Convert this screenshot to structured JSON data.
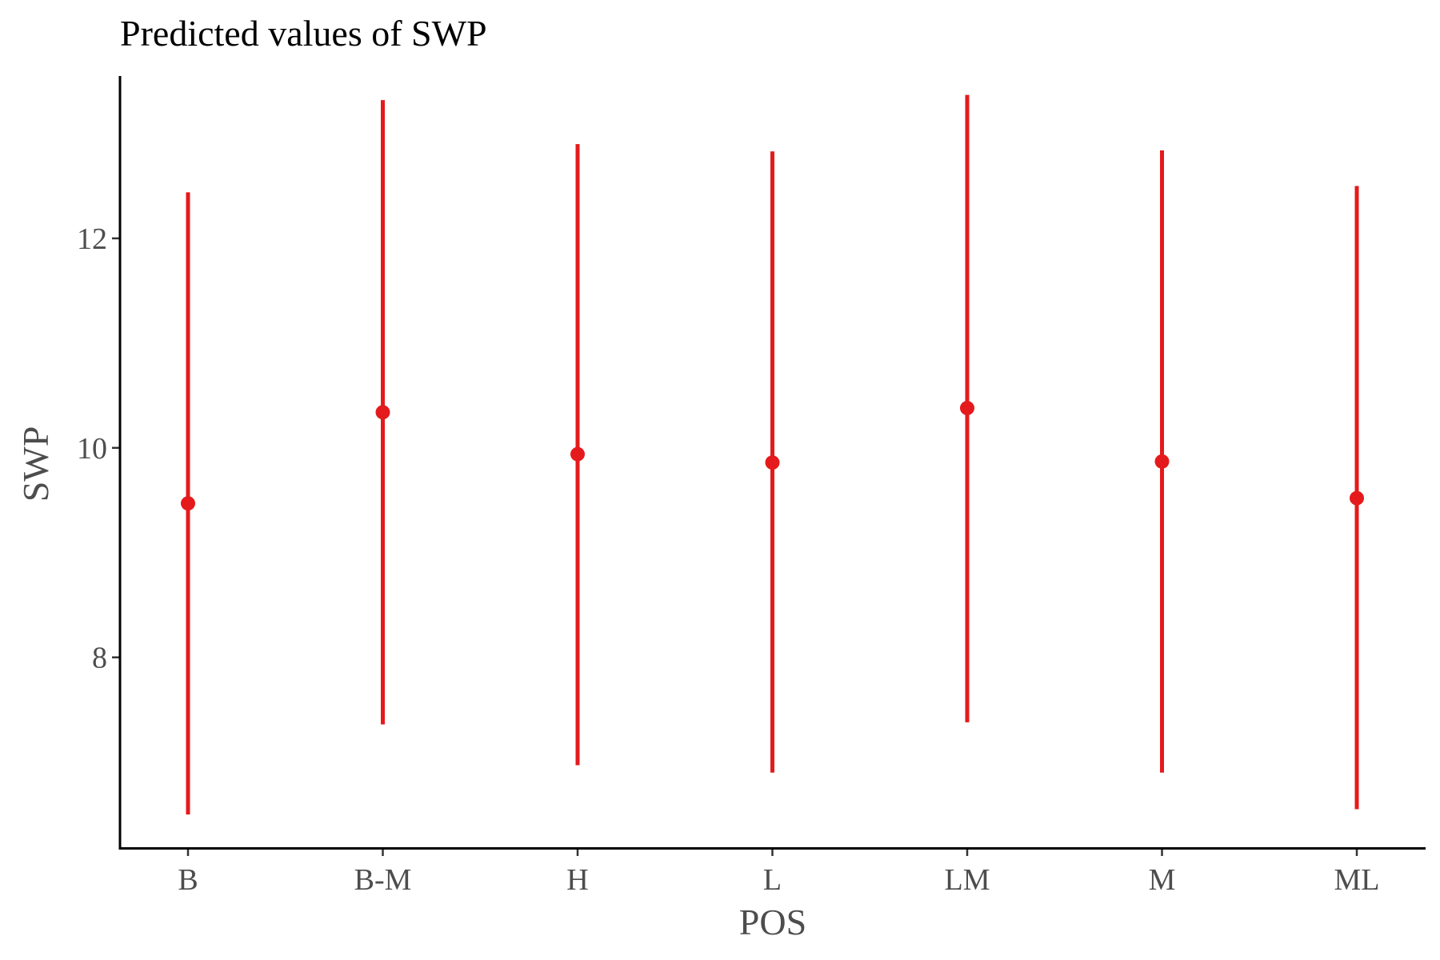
{
  "chart_data": {
    "type": "scatter",
    "title": "Predicted values of SWP",
    "xlabel": "POS",
    "ylabel": "SWP",
    "categories": [
      "B",
      "B-M",
      "H",
      "L",
      "LM",
      "M",
      "ML"
    ],
    "series": [
      {
        "values": [
          9.47,
          10.34,
          9.94,
          9.86,
          10.38,
          9.87,
          9.52
        ],
        "lower": [
          6.5,
          7.36,
          6.97,
          6.9,
          7.38,
          6.9,
          6.55
        ],
        "upper": [
          12.44,
          13.32,
          12.9,
          12.83,
          13.37,
          12.84,
          12.5
        ],
        "color": "#e41a1c"
      }
    ],
    "ylim": [
      6.18,
      13.55
    ],
    "yticks": [
      8,
      10,
      12
    ],
    "grid": false,
    "legend": "none"
  }
}
